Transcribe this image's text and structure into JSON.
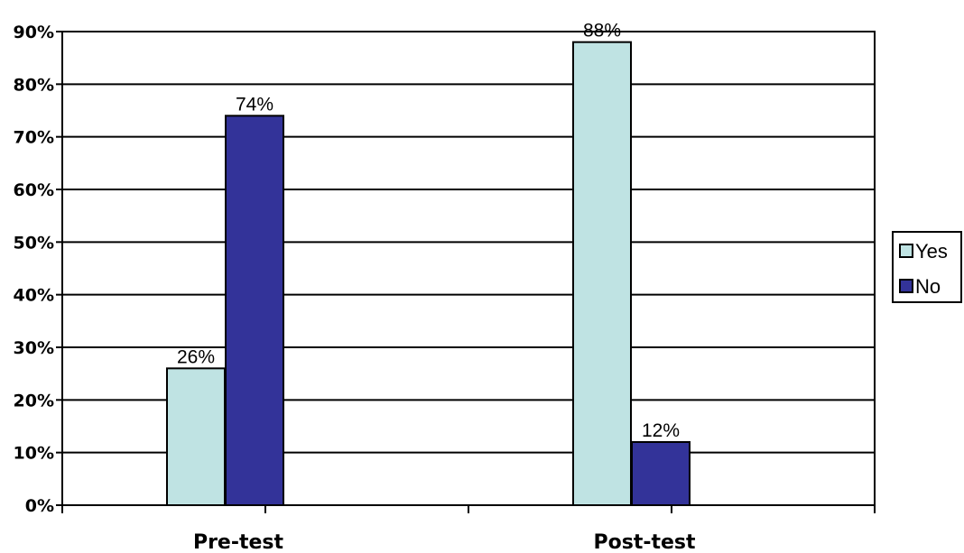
{
  "chart_data": {
    "type": "bar",
    "categories": [
      "Pre-test",
      "Post-test"
    ],
    "series": [
      {
        "name": "Yes",
        "values": [
          26,
          88
        ],
        "labels": [
          "26%",
          "88%"
        ],
        "color": "#bfe3e3"
      },
      {
        "name": "No",
        "values": [
          74,
          12
        ],
        "labels": [
          "74%",
          "12%"
        ],
        "color": "#333399"
      }
    ],
    "ylim": [
      0,
      90
    ],
    "yticks": [
      "0%",
      "10%",
      "20%",
      "30%",
      "40%",
      "50%",
      "60%",
      "70%",
      "80%",
      "90%"
    ],
    "title": "",
    "xlabel": "",
    "ylabel": "",
    "grid": true,
    "legend": "right"
  }
}
